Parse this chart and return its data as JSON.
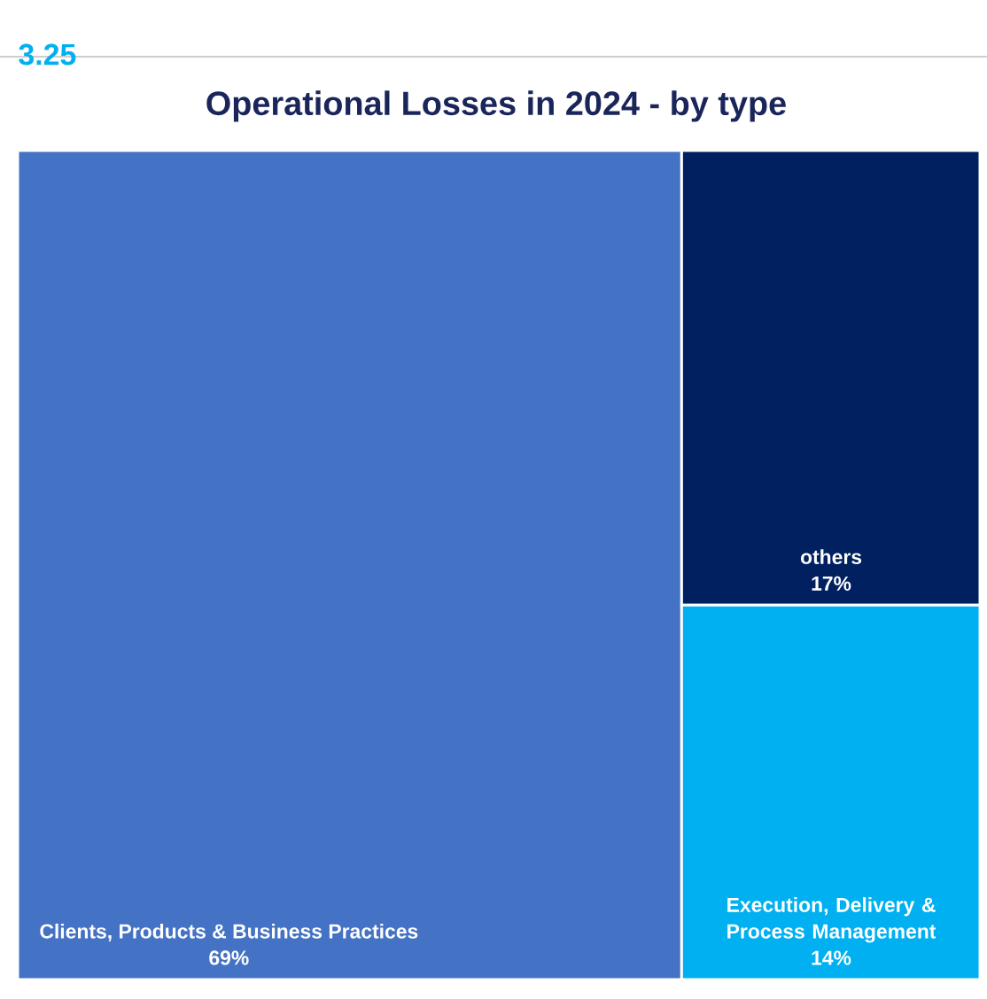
{
  "chart_data": {
    "type": "other",
    "title": "Operational Losses in 2024 - by type",
    "categories": [
      "Clients, Products & Business Practices",
      "others",
      "Execution, Delivery & Process Management"
    ],
    "values": [
      69,
      17,
      14
    ],
    "value_labels": [
      "69%",
      "17%",
      "14%"
    ],
    "colors": [
      "#4472c4",
      "#002060",
      "#00b0f0"
    ],
    "annotations": [
      "3.25"
    ]
  }
}
